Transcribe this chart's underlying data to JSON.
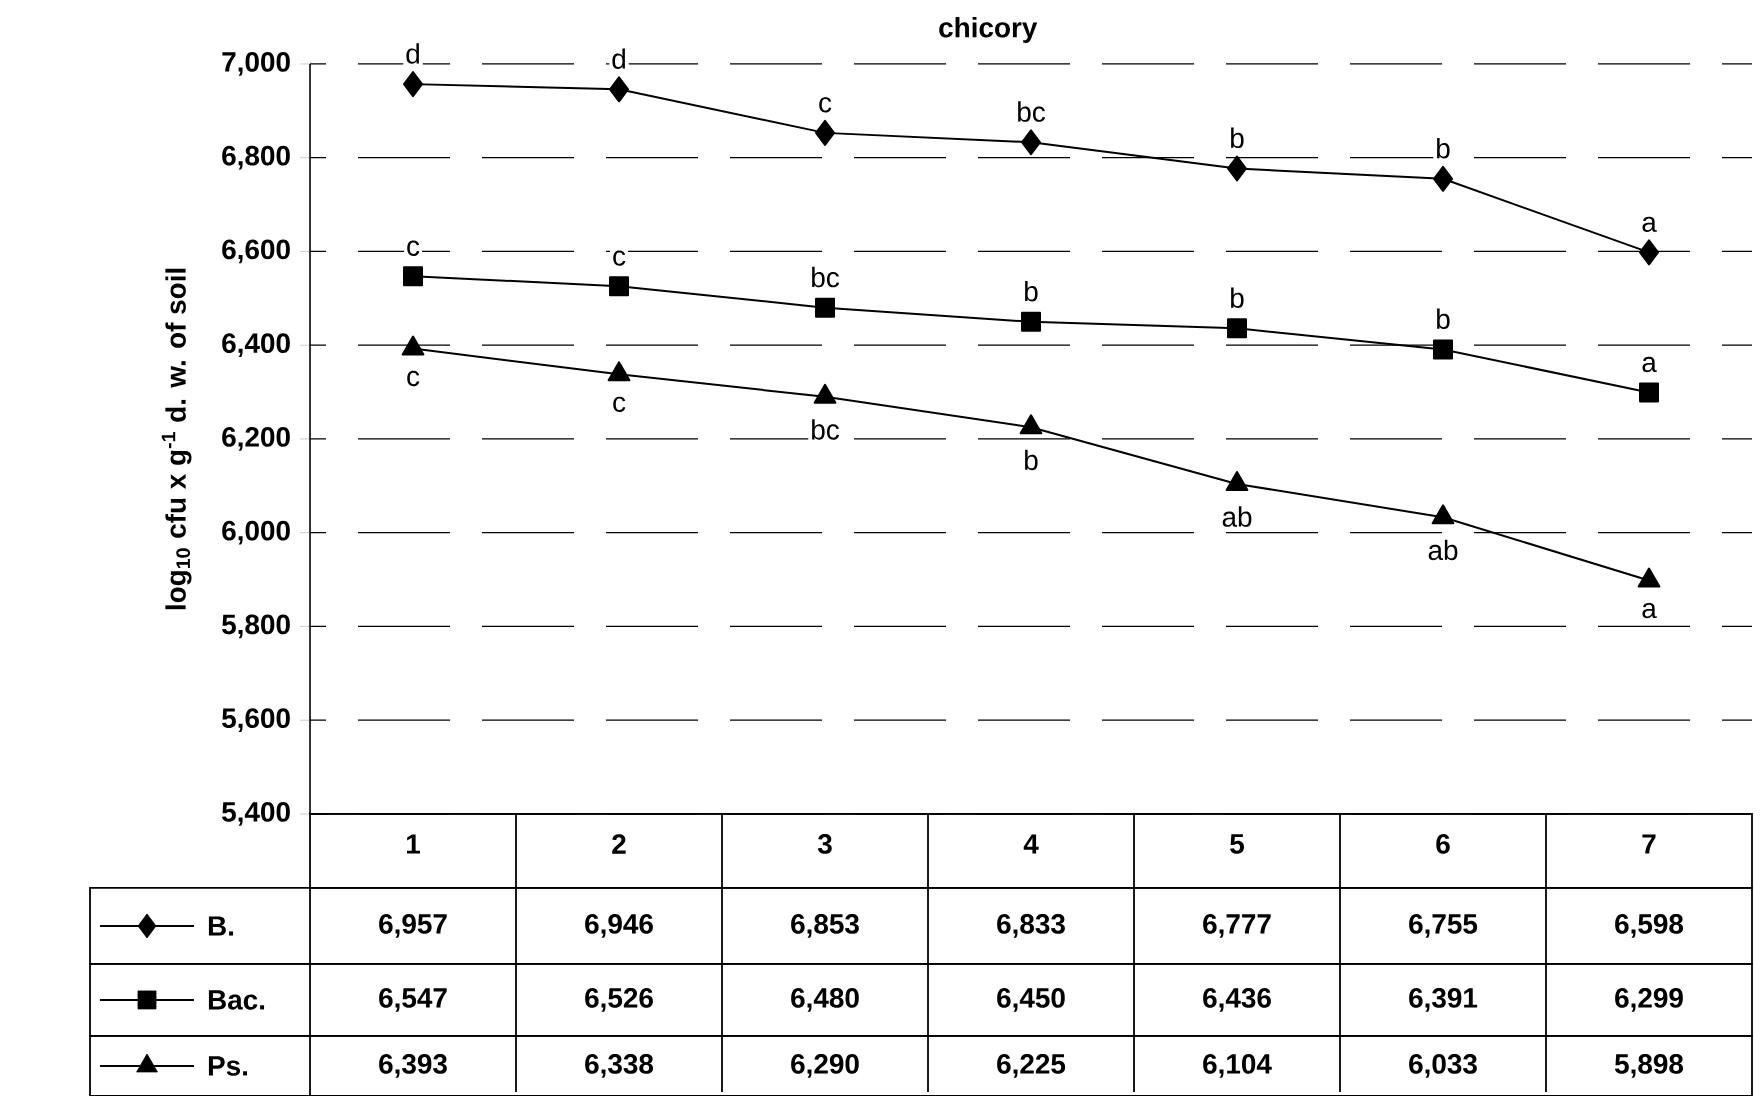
{
  "chart_data": {
    "type": "line",
    "title": "chicory",
    "ylabel": "log$_{10}$ cfu  x g$^{-1}$  d. w. of soil",
    "categories": [
      "1",
      "2",
      "3",
      "4",
      "5",
      "6",
      "7"
    ],
    "series": [
      {
        "name": "B.",
        "color": "#000000",
        "marker": "diamond",
        "values": [
          6957,
          6946,
          6853,
          6833,
          6777,
          6755,
          6598
        ],
        "value_labels": [
          "6,957",
          "6,946",
          "6,853",
          "6,833",
          "6,777",
          "6,755",
          "6,598"
        ]
      },
      {
        "name": "Bac.",
        "color": "#000000",
        "marker": "square",
        "values": [
          6547,
          6526,
          6480,
          6450,
          6436,
          6391,
          6299
        ],
        "value_labels": [
          "6,547",
          "6,526",
          "6,480",
          "6,450",
          "6,436",
          "6,391",
          "6,299"
        ]
      },
      {
        "name": "Ps.",
        "color": "#000000",
        "marker": "triangle",
        "values": [
          6393,
          6338,
          6290,
          6225,
          6104,
          6033,
          5898
        ],
        "value_labels": [
          "6,393",
          "6,338",
          "6,290",
          "6,225",
          "6,104",
          "6,033",
          "5,898"
        ]
      }
    ],
    "ylim": [
      5400,
      7000
    ],
    "yticks": [
      {
        "value": 5400,
        "label": "5,400"
      },
      {
        "value": 5600,
        "label": "5,600"
      },
      {
        "value": 5800,
        "label": "5,800"
      },
      {
        "value": 6000,
        "label": "6,000"
      },
      {
        "value": 6200,
        "label": "6,200"
      },
      {
        "value": 6400,
        "label": "6,400"
      },
      {
        "value": 6600,
        "label": "6,600"
      },
      {
        "value": 6800,
        "label": "6,800"
      },
      {
        "value": 7000,
        "label": "7,000"
      }
    ],
    "grid": "y",
    "legend": "bottom",
    "line_style": "solid",
    "annotations": [
      {
        "text": "d",
        "x": "1",
        "y": 6957
      },
      {
        "text": "d",
        "x": "2",
        "y": 6946
      },
      {
        "text": "c",
        "x": "3",
        "y": 6853
      },
      {
        "text": "bc",
        "x": "4",
        "y": 6833
      },
      {
        "text": "b",
        "x": "5",
        "y": 6777
      },
      {
        "text": "b",
        "x": "6",
        "y": 6755
      },
      {
        "text": "a",
        "x": "7",
        "y": 6598
      },
      {
        "text": "c",
        "x": "1",
        "y": 6547
      },
      {
        "text": "c",
        "x": "2",
        "y": 6526
      },
      {
        "text": "bc",
        "x": "3",
        "y": 6480
      },
      {
        "text": "b",
        "x": "4",
        "y": 6450
      },
      {
        "text": "b",
        "x": "5",
        "y": 6436
      },
      {
        "text": "b",
        "x": "6",
        "y": 6391
      },
      {
        "text": "a",
        "x": "7",
        "y": 6299
      },
      {
        "text": "c",
        "x": "1",
        "y": 6393
      },
      {
        "text": "c",
        "x": "2",
        "y": 6338
      },
      {
        "text": "bc",
        "x": "3",
        "y": 6290
      },
      {
        "text": "b",
        "x": "4",
        "y": 6225
      },
      {
        "text": "ab",
        "x": "5",
        "y": 6104
      },
      {
        "text": "ab",
        "x": "6",
        "y": 6033
      },
      {
        "text": "a",
        "x": "7",
        "y": 5898
      }
    ]
  }
}
